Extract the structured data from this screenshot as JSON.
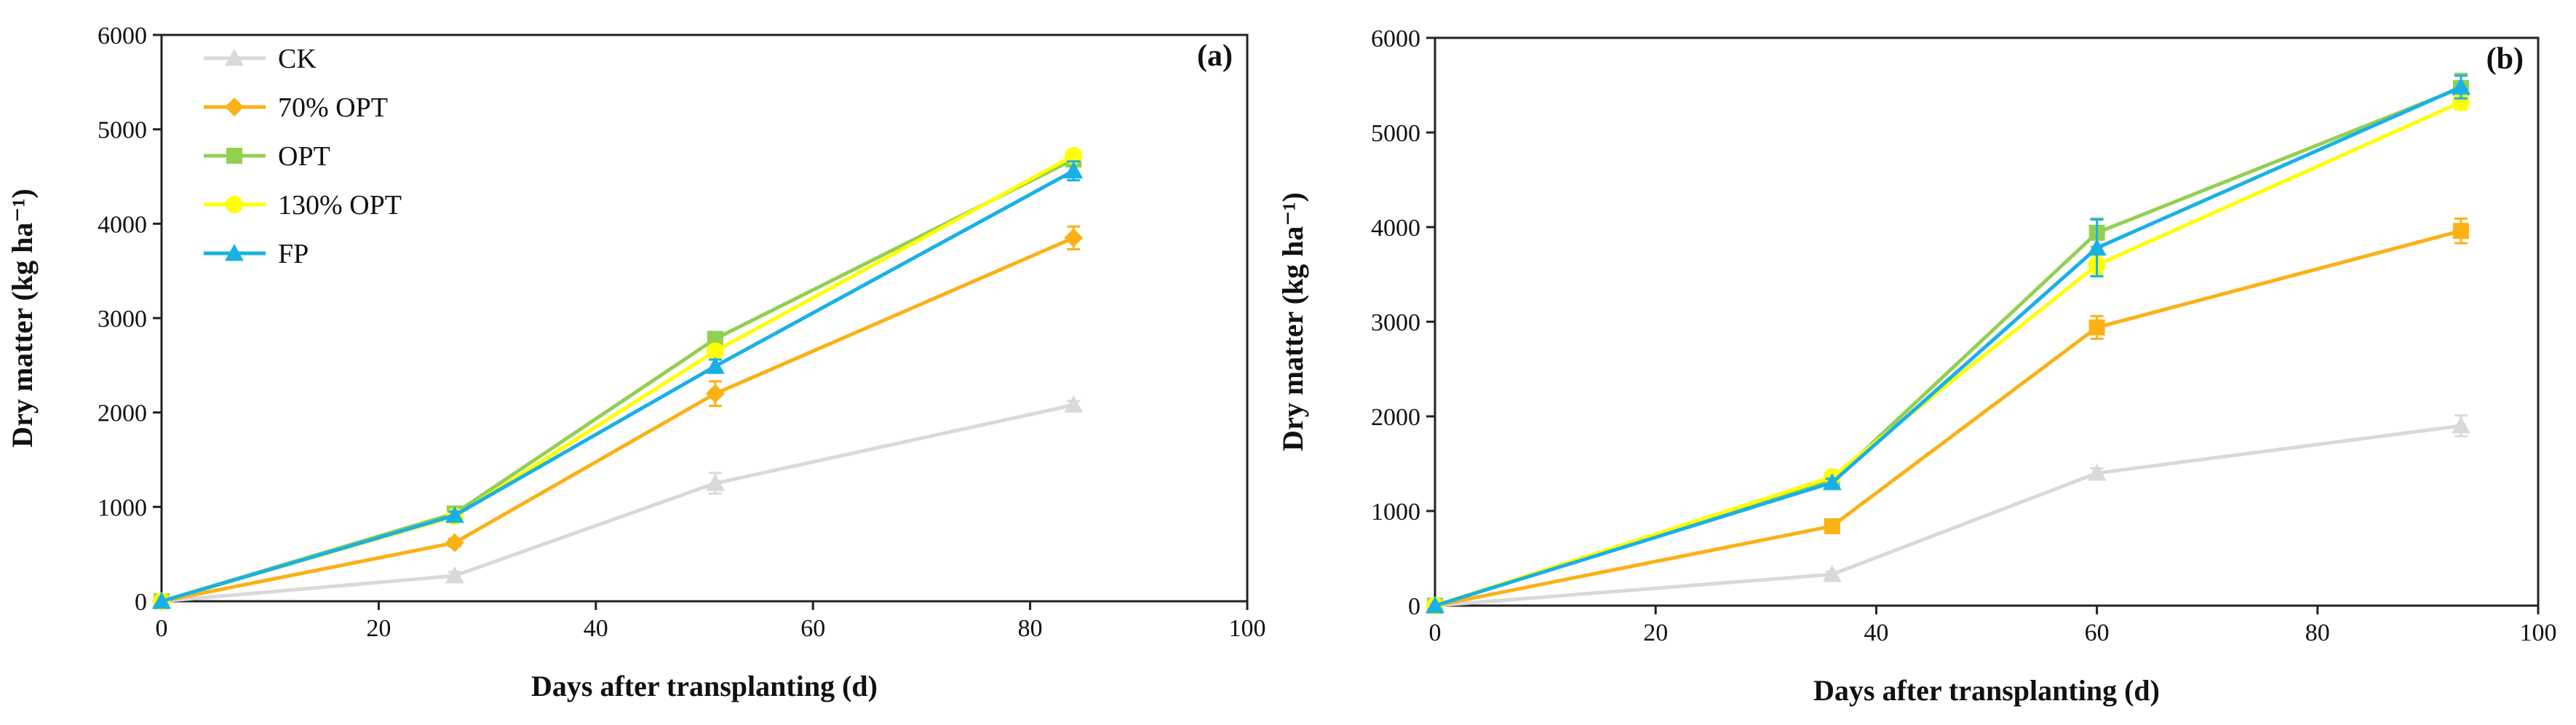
{
  "chart_data": [
    {
      "type": "line",
      "panel_label": "(a)",
      "xlabel": "Days after transplanting (d)",
      "ylabel": "Dry matter (kg ha⁻¹)",
      "xlim": [
        0,
        100
      ],
      "ylim": [
        0,
        6000
      ],
      "xticks": [
        0,
        20,
        40,
        60,
        80,
        100
      ],
      "yticks": [
        0,
        1000,
        2000,
        3000,
        4000,
        5000,
        6000
      ],
      "grid": false,
      "legend": "top-left",
      "series": [
        {
          "name": "CK",
          "color": "#d9d9d9",
          "marker": "triangle",
          "x": [
            0,
            27,
            51,
            84
          ],
          "values": [
            0,
            270,
            1250,
            2080
          ],
          "errors": [
            0,
            40,
            110,
            40
          ]
        },
        {
          "name": "70% OPT",
          "color": "#fbb116",
          "marker": "diamond",
          "x": [
            0,
            27,
            51,
            84
          ],
          "values": [
            0,
            620,
            2200,
            3850
          ],
          "errors": [
            0,
            40,
            130,
            120
          ]
        },
        {
          "name": "OPT",
          "color": "#92d050",
          "marker": "square",
          "x": [
            0,
            27,
            51,
            84
          ],
          "values": [
            0,
            930,
            2780,
            4680
          ],
          "errors": [
            0,
            40,
            70,
            60
          ]
        },
        {
          "name": "130% OPT",
          "color": "#ffff00",
          "marker": "circle",
          "x": [
            0,
            27,
            51,
            84
          ],
          "values": [
            0,
            900,
            2650,
            4720
          ],
          "errors": [
            0,
            40,
            60,
            60
          ]
        },
        {
          "name": "FP",
          "color": "#1ab0e6",
          "marker": "triangle",
          "x": [
            0,
            27,
            51,
            84
          ],
          "values": [
            0,
            910,
            2490,
            4560
          ],
          "errors": [
            0,
            40,
            70,
            100
          ]
        }
      ]
    },
    {
      "type": "line",
      "panel_label": "(b)",
      "xlabel": "Days after transplanting (d)",
      "ylabel": "Dry matter (kg ha⁻¹)",
      "xlim": [
        0,
        100
      ],
      "ylim": [
        0,
        6000
      ],
      "xticks": [
        0,
        20,
        40,
        60,
        80,
        100
      ],
      "yticks": [
        0,
        1000,
        2000,
        3000,
        4000,
        5000,
        6000
      ],
      "grid": false,
      "legend": "none",
      "series": [
        {
          "name": "CK",
          "color": "#d9d9d9",
          "marker": "triangle",
          "x": [
            0,
            36,
            60,
            93
          ],
          "values": [
            0,
            330,
            1400,
            1900
          ],
          "errors": [
            0,
            30,
            50,
            110
          ]
        },
        {
          "name": "70% OPT",
          "color": "#fbb116",
          "marker": "square",
          "x": [
            0,
            36,
            60,
            93
          ],
          "values": [
            0,
            840,
            2940,
            3960
          ],
          "errors": [
            0,
            40,
            120,
            130
          ]
        },
        {
          "name": "OPT",
          "color": "#92d050",
          "marker": "square",
          "x": [
            0,
            36,
            60,
            93
          ],
          "values": [
            0,
            1320,
            3940,
            5470
          ],
          "errors": [
            0,
            40,
            150,
            150
          ]
        },
        {
          "name": "130% OPT",
          "color": "#ffff00",
          "marker": "circle",
          "x": [
            0,
            36,
            60,
            93
          ],
          "values": [
            0,
            1360,
            3600,
            5320
          ],
          "errors": [
            0,
            40,
            100,
            80
          ]
        },
        {
          "name": "FP",
          "color": "#1ab0e6",
          "marker": "triangle",
          "x": [
            0,
            36,
            60,
            93
          ],
          "values": [
            0,
            1300,
            3780,
            5480
          ],
          "errors": [
            0,
            40,
            300,
            120
          ]
        }
      ]
    }
  ]
}
